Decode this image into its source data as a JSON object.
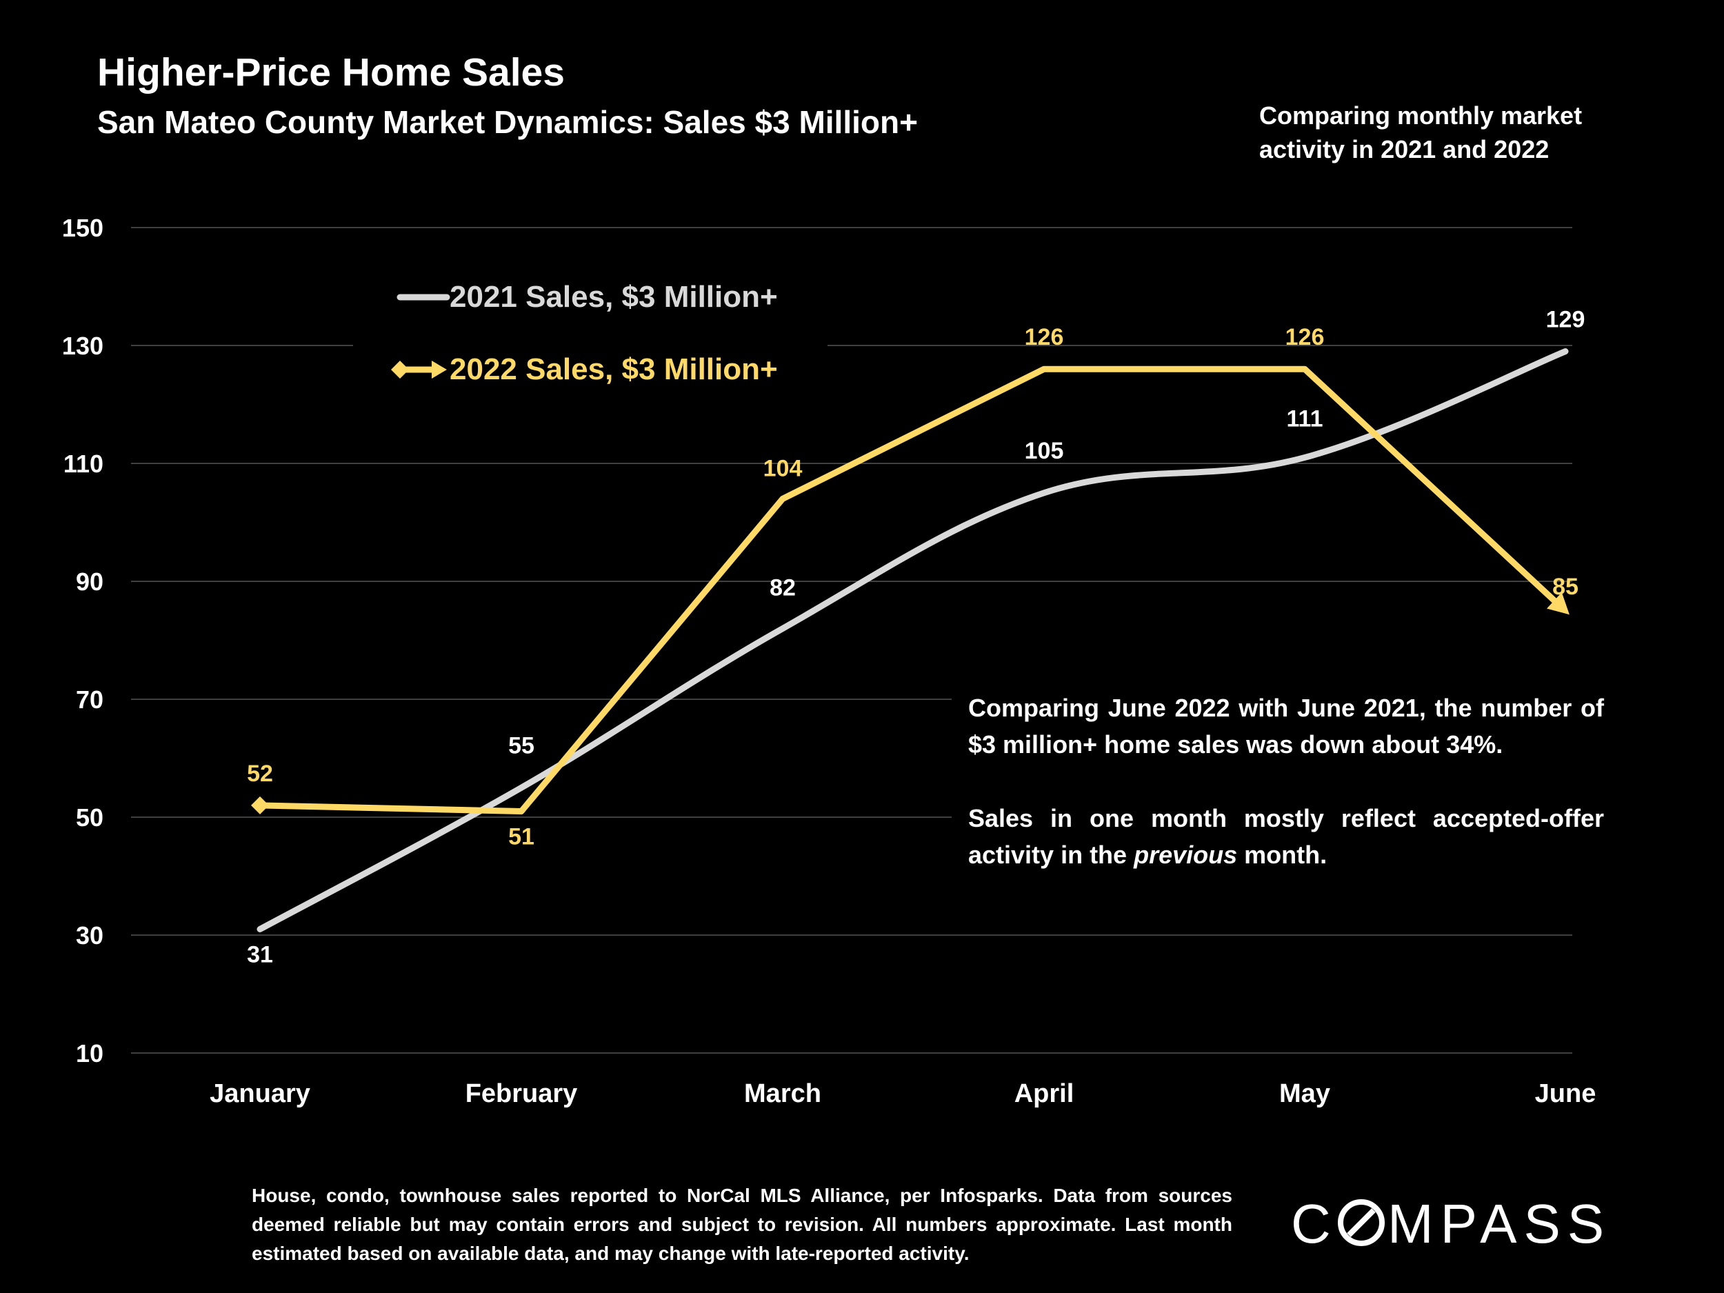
{
  "header": {
    "title": "Higher-Price Home Sales",
    "subtitle": "San Mateo County Market Dynamics: Sales $3 Million+",
    "note": "Comparing monthly market activity in 2021 and 2022"
  },
  "callout": {
    "p1": "Comparing June 2022 with June 2021, the number of $3 million+ home sales was down about 34%.",
    "p2_prefix": "Sales in one month mostly reflect accepted-offer activity in the ",
    "p2_em": "previous",
    "p2_suffix": " month."
  },
  "footer": "House, condo, townhouse sales reported to NorCal MLS Alliance, per Infosparks. Data from sources deemed reliable but may contain errors and subject to revision. All numbers approximate. Last month estimated based on available data, and may change with late-reported activity.",
  "logo": {
    "text": "COMPASS"
  },
  "colors": {
    "series2021": "#d9d9d9",
    "series2022": "#ffd966",
    "grid": "#404040",
    "text": "#ffffff"
  },
  "chart_data": {
    "type": "line",
    "categories": [
      "January",
      "February",
      "March",
      "April",
      "May",
      "June"
    ],
    "ylim": [
      10,
      150
    ],
    "yticks": [
      10,
      30,
      50,
      70,
      90,
      110,
      130,
      150
    ],
    "grid": true,
    "legend_position": "top-left",
    "series": [
      {
        "name": "2021 Sales, $3 Million+",
        "values": [
          31,
          55,
          82,
          105,
          111,
          129
        ],
        "color": "#d9d9d9",
        "smooth": true
      },
      {
        "name": "2022 Sales, $3 Million+",
        "values": [
          52,
          51,
          104,
          126,
          126,
          85
        ],
        "color": "#ffd966",
        "markers": [
          "diamond",
          null,
          null,
          null,
          null,
          "arrow"
        ]
      }
    ]
  }
}
